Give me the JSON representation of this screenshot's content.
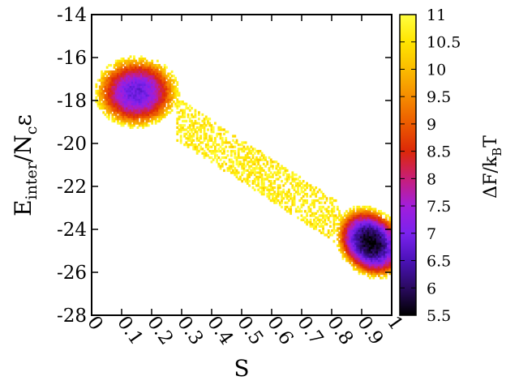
{
  "chart_data": {
    "type": "heatmap",
    "title": "",
    "xlabel": "S",
    "ylabel": {
      "main": "E",
      "sub": "inter",
      "slash": "/N",
      "sub2": "c",
      "tail": "ε"
    },
    "xlim": [
      0,
      1
    ],
    "ylim": [
      -28,
      -14
    ],
    "x_ticks": [
      "0",
      "0.1",
      "0.2",
      "0.3",
      "0.4",
      "0.5",
      "0.6",
      "0.7",
      "0.8",
      "0.9",
      "1"
    ],
    "y_ticks": [
      "-14",
      "-16",
      "-18",
      "-20",
      "-22",
      "-24",
      "-26",
      "-28"
    ],
    "colorbar": {
      "label": {
        "main": "ΔF/k",
        "sub": "B",
        "tail": "T"
      },
      "range": [
        5.5,
        11
      ],
      "ticks": [
        "5.5",
        "6",
        "6.5",
        "7",
        "7.5",
        "8",
        "8.5",
        "9",
        "9.5",
        "10",
        "10.5",
        "11"
      ],
      "colors": [
        "#000000",
        "#2a0a60",
        "#4b12b8",
        "#7a22ee",
        "#a21edb",
        "#c81e78",
        "#dc2808",
        "#ec5a00",
        "#f58c00",
        "#fbbc00",
        "#ffe400",
        "#ffff40"
      ]
    },
    "basins": [
      {
        "s_center": 0.15,
        "e_center": -17.6,
        "min_free_energy": 6.8
      },
      {
        "s_center": 0.93,
        "e_center": -24.6,
        "min_free_energy": 5.5
      }
    ],
    "grid": false
  }
}
